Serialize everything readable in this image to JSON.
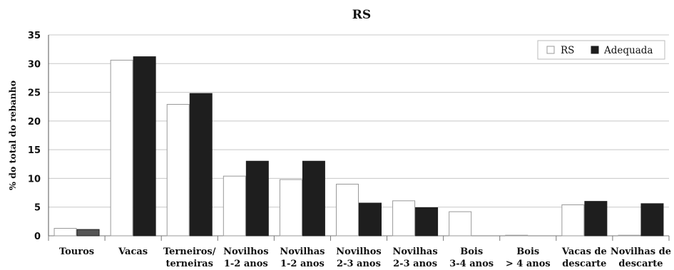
{
  "chart_data": {
    "type": "bar",
    "title": "RS",
    "xlabel": "",
    "ylabel": "% do total do rebanho",
    "ylim": [
      0,
      35
    ],
    "yticks": [
      0,
      5,
      10,
      15,
      20,
      25,
      30,
      35
    ],
    "grid": true,
    "legend_position": "top-right",
    "categories": [
      [
        "Touros"
      ],
      [
        "Vacas"
      ],
      [
        "Terneiros/",
        "terneiras"
      ],
      [
        "Novilhos",
        "1-2 anos"
      ],
      [
        "Novilhas",
        "1-2 anos"
      ],
      [
        "Novilhos",
        "2-3 anos"
      ],
      [
        "Novilhas",
        "2-3 anos"
      ],
      [
        "Bois",
        "3-4 anos"
      ],
      [
        "Bois",
        "> 4 anos"
      ],
      [
        "Vacas de",
        "descarte"
      ],
      [
        "Novilhas de",
        "descarte"
      ]
    ],
    "series": [
      {
        "name": "RS",
        "fill": "#ffffff",
        "stroke": "#999999",
        "values": [
          1.3,
          30.6,
          22.9,
          10.4,
          9.8,
          9.0,
          6.1,
          4.2,
          0.1,
          5.4,
          0.1
        ]
      },
      {
        "name": "Adequada",
        "fill": "#1e1e1e",
        "stroke": "#1e1e1e",
        "values": [
          1.1,
          31.2,
          24.8,
          13.0,
          13.0,
          5.7,
          4.9,
          0.0,
          0.0,
          6.0,
          5.6
        ]
      }
    ],
    "highlight": {
      "series": 1,
      "index": 0,
      "fill": "#555555"
    }
  }
}
